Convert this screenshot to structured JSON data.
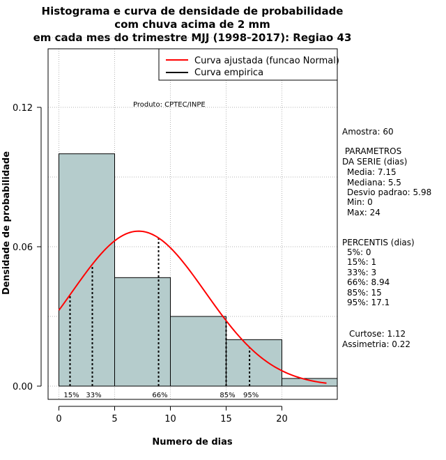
{
  "chart_data": {
    "type": "histogram",
    "title_lines": [
      "Histograma e curva de densidade de probabilidade",
      "com chuva acima de 2 mm",
      "em cada mes do trimestre MJJ (1998-2017): Regiao 43"
    ],
    "xlabel": "Numero de dias",
    "ylabel": "Densidade de probabilidade",
    "xlim": [
      -1,
      25
    ],
    "ylim": [
      -0.006,
      0.15
    ],
    "x_ticks": [
      0,
      5,
      10,
      15,
      20
    ],
    "y_ticks": [
      0.0,
      0.06,
      0.12
    ],
    "y_tick_labels": [
      "0.00",
      "0.06",
      "0.12"
    ],
    "grid": true,
    "bins": [
      {
        "start": 0,
        "end": 5,
        "density": 0.1
      },
      {
        "start": 5,
        "end": 10,
        "density": 0.0467
      },
      {
        "start": 10,
        "end": 15,
        "density": 0.03
      },
      {
        "start": 15,
        "end": 20,
        "density": 0.02
      },
      {
        "start": 20,
        "end": 25,
        "density": 0.0033
      }
    ],
    "normal_fit": {
      "mean": 7.15,
      "sd": 5.98,
      "x_range": [
        0,
        24
      ],
      "color": "#ff0000"
    },
    "percentile_lines": [
      {
        "label": "15%",
        "x": 1
      },
      {
        "label": "33%",
        "x": 3
      },
      {
        "label": "66%",
        "x": 8.94
      },
      {
        "label": "85%",
        "x": 15
      },
      {
        "label": "95%",
        "x": 17.1
      }
    ],
    "legend": [
      {
        "label": "Curva ajustada (funcao Normal)",
        "color": "#ff0000"
      },
      {
        "label": "Curva empirica",
        "color": "#000000"
      }
    ],
    "annotation": "Produto: CPTEC/INPE",
    "bar_color": "#b5cccc"
  },
  "stats": {
    "amostra": "Amostra: 60",
    "parametros_title": [
      " PARAMETROS",
      "DA SERIE (dias)"
    ],
    "parametros": [
      "Media: 7.15",
      "Mediana: 5.5",
      "Desvio padrao: 5.98",
      "Min: 0",
      "Max: 24"
    ],
    "percentis_title": "PERCENTIS (dias)",
    "percentis": [
      "5%: 0",
      "15%: 1",
      "33%: 3",
      "66%: 8.94",
      "85%: 15",
      "95%: 17.1"
    ],
    "curtose": "Curtose: 1.12",
    "assimetria": "Assimetria: 0.22"
  }
}
